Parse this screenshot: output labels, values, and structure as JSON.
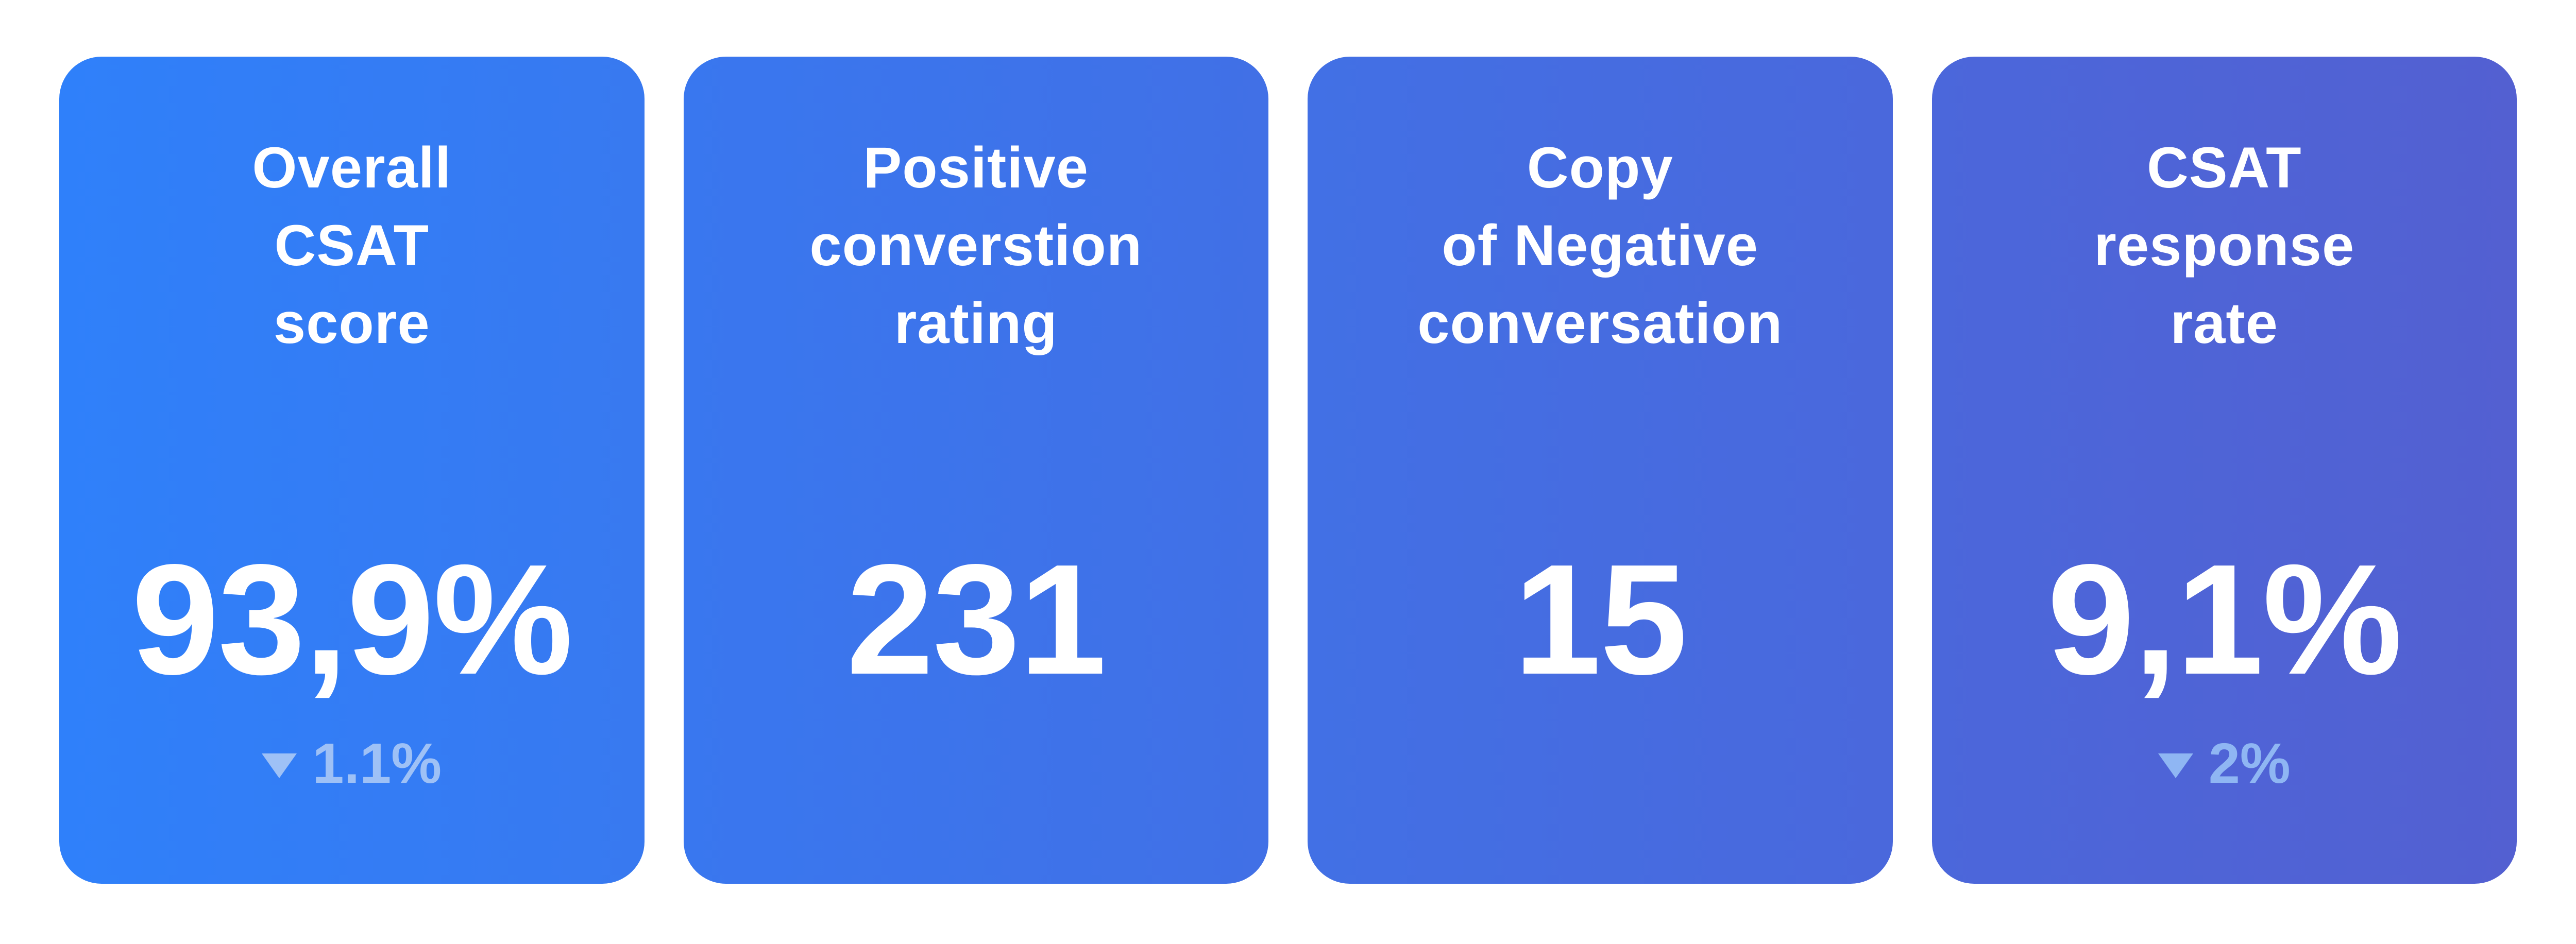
{
  "page": {
    "background": "#FFFFFF"
  },
  "cards": [
    {
      "title": "Overall\nCSAT\nscore",
      "value": "93,9%",
      "delta": {
        "label": "1.1%",
        "direction": "down",
        "color": "#9EC1F6"
      },
      "gradient": {
        "from": "#2F80FA",
        "to": "#3879F0"
      },
      "text_color": "#FFFFFF"
    },
    {
      "title": "Positive\nconverstion\nrating",
      "value": "231",
      "delta": null,
      "gradient": {
        "from": "#3977EF",
        "to": "#4170E6"
      },
      "text_color": "#FFFFFF"
    },
    {
      "title": "Copy\nof Negative\nconversation",
      "value": "15",
      "delta": null,
      "gradient": {
        "from": "#4270E5",
        "to": "#4A68DC"
      },
      "text_color": "#FFFFFF"
    },
    {
      "title": "CSAT\nresponse\nrate",
      "value": "9,1%",
      "delta": {
        "label": "2%",
        "direction": "down",
        "color": "#8FB6F3"
      },
      "gradient": {
        "from": "#4B67DB",
        "to": "#5360D1"
      },
      "text_color": "#FFFFFF"
    }
  ],
  "chart_data": {
    "type": "table",
    "title": "CSAT KPI scorecards",
    "metrics": [
      {
        "label": "Overall CSAT score",
        "value": "93,9%",
        "numeric_value": 93.9,
        "unit": "%",
        "change": {
          "label": "1.1%",
          "numeric_value": 1.1,
          "direction": "down"
        }
      },
      {
        "label": "Positive converstion rating",
        "value": "231",
        "numeric_value": 231,
        "unit": "",
        "change": null
      },
      {
        "label": "Copy of Negative conversation",
        "value": "15",
        "numeric_value": 15,
        "unit": "",
        "change": null
      },
      {
        "label": "CSAT response rate",
        "value": "9,1%",
        "numeric_value": 9.1,
        "unit": "%",
        "change": {
          "label": "2%",
          "numeric_value": 2,
          "direction": "down"
        }
      }
    ],
    "layout": "4 horizontal KPI cards, white background, blue-to-indigo gradient left to right"
  }
}
